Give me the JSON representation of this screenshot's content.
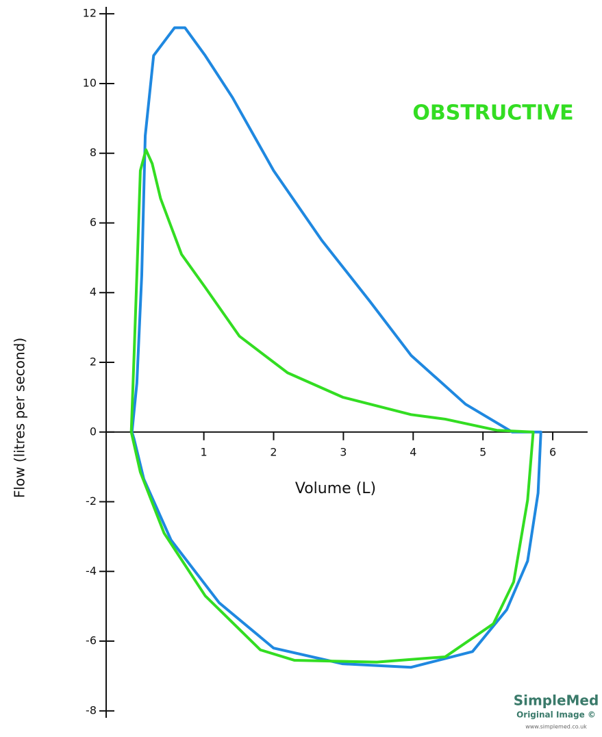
{
  "chart_data": {
    "type": "line",
    "annotation": "OBSTRUCTIVE",
    "annotation_color": "#33dd22",
    "x_label": "Volume (L)",
    "y_label": "Flow (litres per second)",
    "xlim": [
      -0.4,
      6.5
    ],
    "xticks": [
      1,
      2,
      3,
      4,
      5,
      6
    ],
    "ylim": [
      -8.2,
      12.2
    ],
    "yticks": [
      12,
      10,
      8,
      6,
      4,
      2,
      0,
      -2,
      -4,
      -6,
      -8
    ],
    "series": [
      {
        "color": "#1f88e0",
        "x": [
          -0.03,
          0.04,
          0.11,
          0.16,
          0.28,
          0.58,
          0.73,
          1.02,
          1.41,
          2.0,
          2.69,
          3.38,
          3.97,
          4.75,
          5.42,
          5.83,
          5.79,
          5.64,
          5.34,
          4.85,
          3.97,
          2.99,
          2.0,
          1.22,
          0.53,
          0.14,
          0.0,
          -0.03
        ],
        "values": [
          0,
          1.4,
          4.5,
          8.5,
          10.8,
          11.6,
          11.6,
          10.8,
          9.6,
          7.5,
          5.5,
          3.75,
          2.2,
          0.8,
          0,
          0,
          -1.75,
          -3.7,
          -5.1,
          -6.3,
          -6.75,
          -6.65,
          -6.2,
          -4.9,
          -3.1,
          -1.35,
          -0.2,
          0
        ]
      },
      {
        "color": "#33dd22",
        "x": [
          -0.04,
          0.0,
          0.04,
          0.09,
          0.17,
          0.26,
          0.38,
          0.68,
          1.02,
          1.51,
          2.2,
          2.99,
          3.97,
          4.46,
          5.2,
          5.72,
          5.64,
          5.44,
          5.15,
          4.46,
          3.48,
          2.3,
          1.81,
          1.02,
          0.43,
          0.09,
          -0.04
        ],
        "values": [
          0,
          2.2,
          4.5,
          7.5,
          8.1,
          7.7,
          6.7,
          5.1,
          4.15,
          2.75,
          1.7,
          1.0,
          0.5,
          0.37,
          0.05,
          0,
          -1.95,
          -4.3,
          -5.5,
          -6.45,
          -6.6,
          -6.55,
          -6.25,
          -4.7,
          -2.9,
          -1.15,
          0
        ]
      }
    ]
  },
  "watermark": {
    "brand": "SimpleMed",
    "line": "Original Image ©",
    "url": "www.simplemed.co.uk"
  }
}
